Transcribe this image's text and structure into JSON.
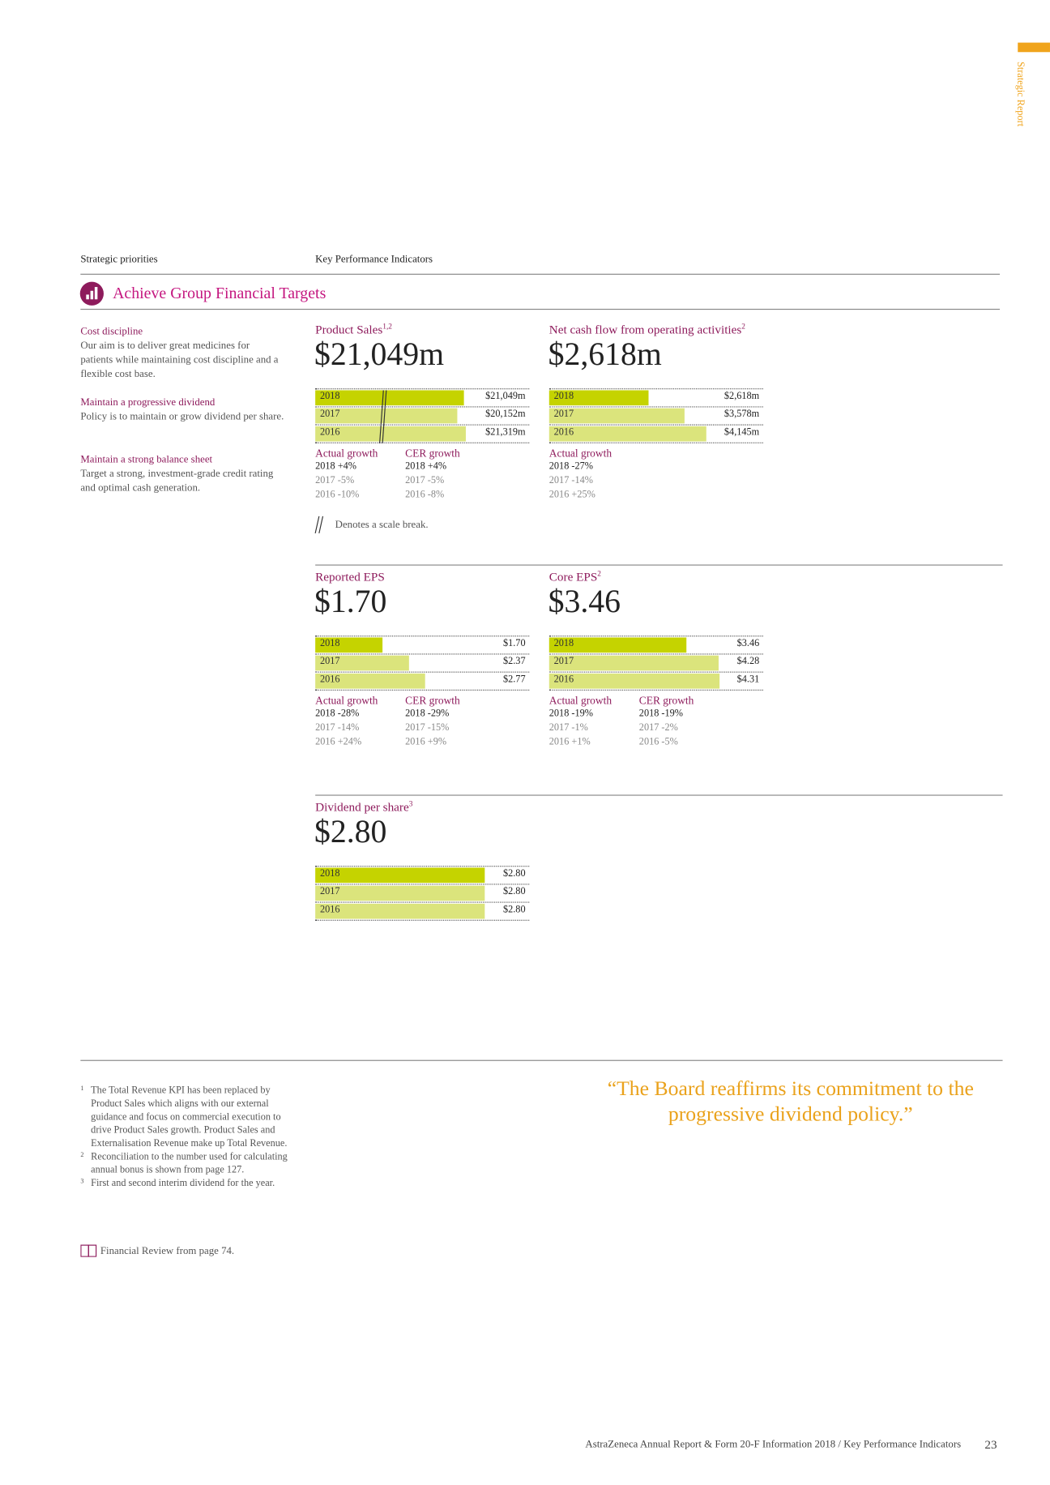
{
  "side_label": "Strategic Report",
  "header": {
    "left": "Strategic priorities",
    "right": "Key Performance Indicators"
  },
  "section_title": "Achieve Group Financial Targets",
  "priorities": [
    {
      "title": "Cost discipline",
      "text": "Our aim is to deliver great medicines for patients while maintaining cost discipline and a flexible cost base."
    },
    {
      "title": "Maintain a progressive dividend",
      "text": "Policy is to maintain or grow dividend per share."
    },
    {
      "title": "Maintain a strong balance sheet",
      "text": "Target a strong, investment-grade credit rating and optimal cash generation."
    }
  ],
  "bar_colors": [
    "#c5d300",
    "#dbe47c",
    "#dbe47c"
  ],
  "kpis": [
    {
      "title": "Product Sales",
      "sup": "1,2",
      "headline": "$21,049m",
      "categories": [
        "2018",
        "2017",
        "2016"
      ],
      "values": [
        21049,
        20152,
        21319
      ],
      "value_labels": [
        "$21,049m",
        "$20,152m",
        "$21,319m"
      ],
      "xlim": [
        0,
        30000
      ],
      "scale_break": true,
      "growth": [
        {
          "title": "Actual growth",
          "rows": [
            "2018 +4%",
            "2017 -5%",
            "2016 -10%"
          ]
        },
        {
          "title": "CER growth",
          "rows": [
            "2018 +4%",
            "2017 -5%",
            "2016 -8%"
          ]
        }
      ]
    },
    {
      "title": "Net cash flow from operating activities",
      "sup": "2",
      "headline": "$2,618m",
      "categories": [
        "2018",
        "2017",
        "2016"
      ],
      "values": [
        2618,
        3578,
        4145
      ],
      "value_labels": [
        "$2,618m",
        "$3,578m",
        "$4,145m"
      ],
      "xlim": [
        0,
        5600
      ],
      "scale_break": false,
      "growth": [
        {
          "title": "Actual growth",
          "rows": [
            "2018 -27%",
            "2017 -14%",
            "2016 +25%"
          ]
        }
      ]
    },
    {
      "title": "Reported EPS",
      "headline": "$1.70",
      "categories": [
        "2018",
        "2017",
        "2016"
      ],
      "values": [
        1.7,
        2.37,
        2.77
      ],
      "value_labels": [
        "$1.70",
        "$2.37",
        "$2.77"
      ],
      "xlim": [
        0,
        5.35
      ],
      "scale_break": false,
      "growth": [
        {
          "title": "Actual growth",
          "rows": [
            "2018 -28%",
            "2017 -14%",
            "2016 +24%"
          ]
        },
        {
          "title": "CER growth",
          "rows": [
            "2018 -29%",
            "2017 -15%",
            "2016 +9%"
          ]
        }
      ]
    },
    {
      "title": "Core EPS",
      "sup": "2",
      "headline": "$3.46",
      "categories": [
        "2018",
        "2017",
        "2016"
      ],
      "values": [
        3.46,
        4.28,
        4.31
      ],
      "value_labels": [
        "$3.46",
        "$4.28",
        "$4.31"
      ],
      "xlim": [
        0,
        5.35
      ],
      "scale_break": false,
      "growth": [
        {
          "title": "Actual growth",
          "rows": [
            "2018 -19%",
            "2017 -1%",
            "2016 +1%"
          ]
        },
        {
          "title": "CER growth",
          "rows": [
            "2018 -19%",
            "2017 -2%",
            "2016 -5%"
          ]
        }
      ]
    },
    {
      "title": "Dividend per share",
      "sup": "3",
      "headline": "$2.80",
      "categories": [
        "2018",
        "2017",
        "2016"
      ],
      "values": [
        2.8,
        2.8,
        2.8
      ],
      "value_labels": [
        "$2.80",
        "$2.80",
        "$2.80"
      ],
      "xlim": [
        0,
        3.5
      ],
      "scale_break": false,
      "growth": []
    }
  ],
  "scale_break_note": "Denotes a scale break.",
  "footnotes": [
    {
      "mark": "1",
      "text": "The Total Revenue KPI has been replaced by Product Sales which aligns with our external guidance and focus on commercial execution to drive Product Sales growth. Product Sales and Externalisation Revenue make up Total Revenue."
    },
    {
      "mark": "2",
      "text": "Reconciliation to the number used for calculating annual bonus is shown from page 127."
    },
    {
      "mark": "3",
      "text": "First and second interim dividend for the year."
    }
  ],
  "reference": "Financial Review from page 74.",
  "quote": "“The Board reaffirms its commitment to the progressive dividend policy.”",
  "footer": {
    "text": "AstraZeneca Annual Report & Form 20-F Information 2018 / Key Performance Indicators",
    "page": "23"
  }
}
